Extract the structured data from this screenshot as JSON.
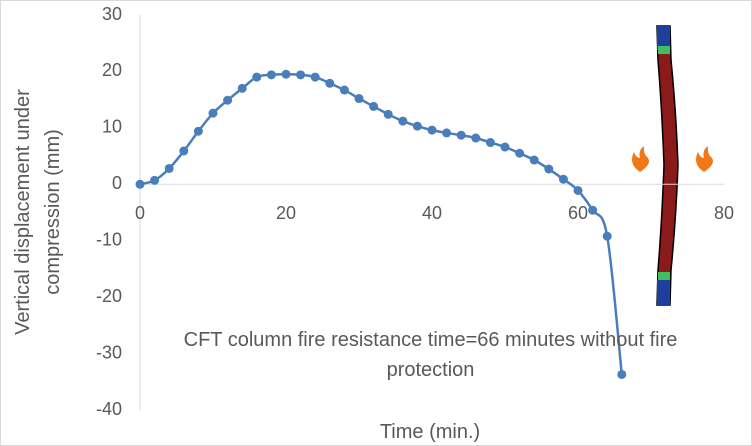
{
  "chart_data": {
    "type": "line",
    "x_label": "Time (min.)",
    "y_label": "Vertical displacement under compression (mm)",
    "annotation": "CFT column fire resistance time=66 minutes without fire protection",
    "x": [
      0,
      2,
      4,
      6,
      8,
      10,
      12,
      14,
      16,
      18,
      20,
      22,
      24,
      26,
      28,
      30,
      32,
      34,
      36,
      38,
      40,
      42,
      44,
      46,
      48,
      50,
      52,
      54,
      56,
      58,
      60,
      62,
      64,
      66
    ],
    "series": [
      {
        "color": "#4a7ebb",
        "values": [
          0,
          0.7,
          2.8,
          5.9,
          9.4,
          12.6,
          14.9,
          17,
          19,
          19.4,
          19.5,
          19.4,
          19,
          17.9,
          16.7,
          15.2,
          13.8,
          12.4,
          11.2,
          10.3,
          9.6,
          9.1,
          8.7,
          8.2,
          7.4,
          6.6,
          5.5,
          4.3,
          2.7,
          0.9,
          -1.1,
          -4.6,
          -9.2,
          -33.7
        ]
      }
    ],
    "xlim": [
      0,
      80
    ],
    "xticks": [
      0,
      20,
      40,
      60,
      80
    ],
    "ylim": [
      -40,
      30
    ],
    "yticks": [
      -40,
      -30,
      -20,
      -10,
      0,
      10,
      20,
      30
    ],
    "grid": false
  }
}
